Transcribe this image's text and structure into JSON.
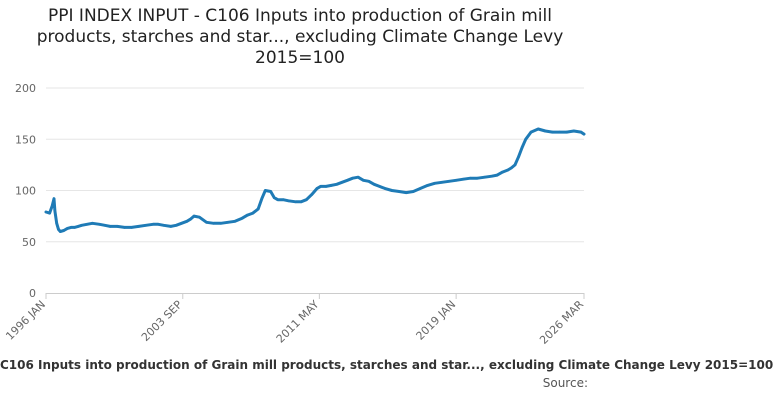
{
  "colors": {
    "series": "#1f7bb6",
    "grid": "#e6e6e6",
    "axis": "#cccccc",
    "tick_text": "#666666"
  },
  "header": {
    "title": "PPI INDEX INPUT - C106 Inputs into production of Grain mill products, starches and star..., excluding Climate Change Levy 2015=100"
  },
  "footer": {
    "legend": "C106 Inputs into production of Grain mill products, starches and star..., excluding Climate Change Levy 2015=100",
    "source": "Source: "
  },
  "chart_data": {
    "type": "line",
    "title": "PPI INDEX INPUT - C106 Inputs into production of Grain mill products, starches and star..., excluding Climate Change Levy 2015=100",
    "xlabel": "",
    "ylabel": "",
    "ylim": [
      0,
      200
    ],
    "xlim": [
      1996.0,
      2026.17
    ],
    "yticks": [
      "0",
      "50",
      "100",
      "150",
      "200"
    ],
    "xticks": [
      {
        "label": "1996 JAN",
        "x": 1996.0
      },
      {
        "label": "2003 SEP",
        "x": 2003.67
      },
      {
        "label": "2011 MAY",
        "x": 2011.33
      },
      {
        "label": "2019 JAN",
        "x": 2019.0
      },
      {
        "label": "2026 MAR",
        "x": 2026.17
      }
    ],
    "grid": true,
    "series": [
      {
        "name": "C106 Inputs into production of Grain mill products, starches and star..., excluding Climate Change Levy 2015=100",
        "x": [
          1996.0,
          1996.2,
          1996.35,
          1996.45,
          1996.5,
          1996.6,
          1996.7,
          1996.8,
          1997.0,
          1997.2,
          1997.4,
          1997.6,
          1997.8,
          1998.0,
          1998.3,
          1998.6,
          1999.0,
          1999.3,
          1999.6,
          2000.0,
          2000.4,
          2000.8,
          2001.2,
          2001.6,
          2002.0,
          2002.3,
          2002.6,
          2003.0,
          2003.3,
          2003.6,
          2003.9,
          2004.1,
          2004.3,
          2004.6,
          2005.0,
          2005.4,
          2005.8,
          2006.2,
          2006.6,
          2007.0,
          2007.3,
          2007.6,
          2007.9,
          2008.1,
          2008.3,
          2008.6,
          2008.8,
          2009.0,
          2009.3,
          2009.6,
          2010.0,
          2010.3,
          2010.6,
          2010.9,
          2011.2,
          2011.4,
          2011.7,
          2012.0,
          2012.3,
          2012.6,
          2012.9,
          2013.2,
          2013.5,
          2013.8,
          2014.1,
          2014.4,
          2014.7,
          2015.0,
          2015.4,
          2015.8,
          2016.2,
          2016.6,
          2017.0,
          2017.4,
          2017.8,
          2018.2,
          2018.6,
          2019.0,
          2019.4,
          2019.8,
          2020.2,
          2020.6,
          2021.0,
          2021.3,
          2021.6,
          2021.9,
          2022.1,
          2022.3,
          2022.5,
          2022.7,
          2022.9,
          2023.2,
          2023.6,
          2024.0,
          2024.4,
          2024.8,
          2025.2,
          2025.6,
          2026.0,
          2026.17
        ],
        "values": [
          79,
          78,
          85,
          92,
          80,
          68,
          62,
          60,
          61,
          63,
          64,
          64,
          65,
          66,
          67,
          68,
          67,
          66,
          65,
          65,
          64,
          64,
          65,
          66,
          67,
          67,
          66,
          65,
          66,
          68,
          70,
          72,
          75,
          74,
          69,
          68,
          68,
          69,
          70,
          73,
          76,
          78,
          82,
          92,
          100,
          99,
          93,
          91,
          91,
          90,
          89,
          89,
          91,
          96,
          102,
          104,
          104,
          105,
          106,
          108,
          110,
          112,
          113,
          110,
          109,
          106,
          104,
          102,
          100,
          99,
          98,
          99,
          102,
          105,
          107,
          108,
          109,
          110,
          111,
          112,
          112,
          113,
          114,
          115,
          118,
          120,
          122,
          125,
          133,
          142,
          150,
          157,
          160,
          158,
          157,
          157,
          157,
          158,
          157,
          155
        ]
      }
    ]
  }
}
